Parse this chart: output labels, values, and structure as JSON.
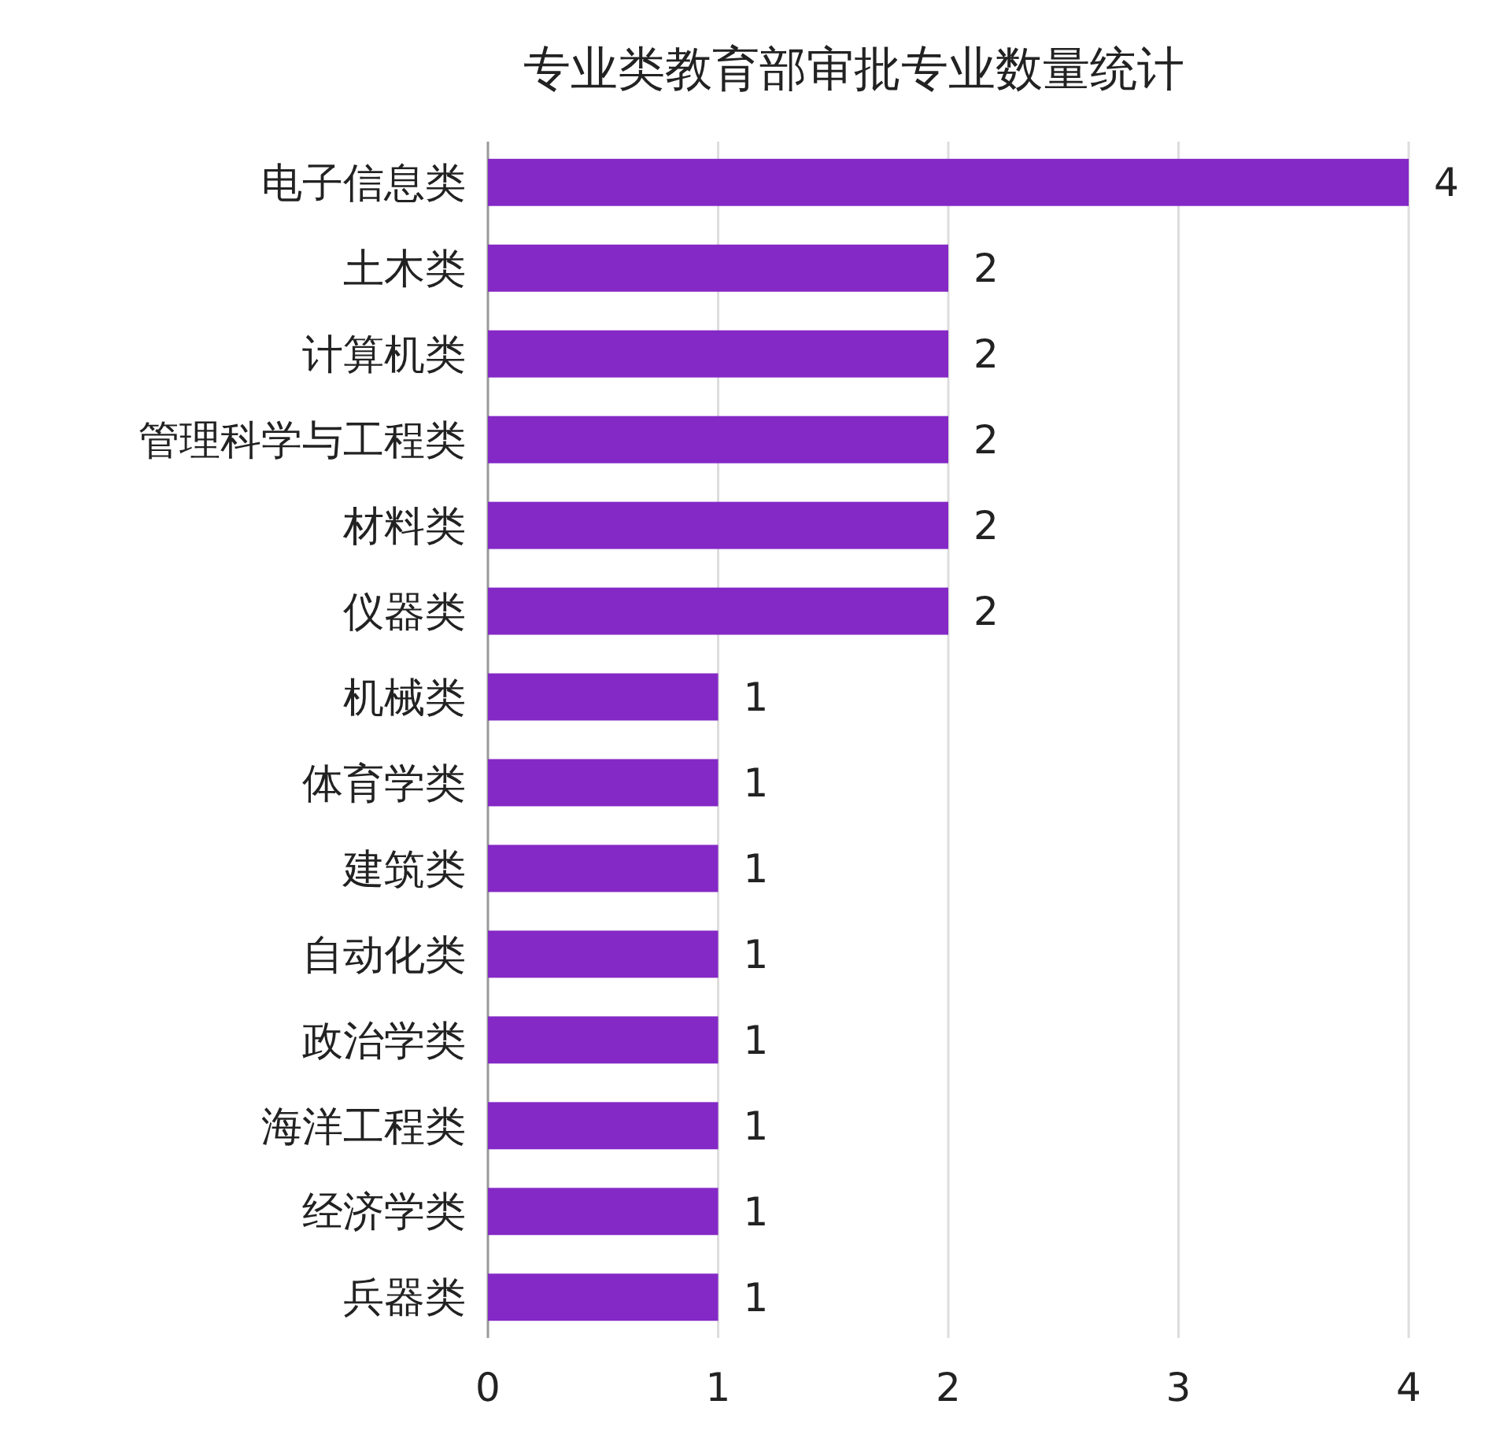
{
  "chart_data": {
    "type": "bar",
    "orientation": "horizontal",
    "title": "专业类教育部审批专业数量统计",
    "categories": [
      "电子信息类",
      "土木类",
      "计算机类",
      "管理科学与工程类",
      "材料类",
      "仪器类",
      "机械类",
      "体育学类",
      "建筑类",
      "自动化类",
      "政治学类",
      "海洋工程类",
      "经济学类",
      "兵器类"
    ],
    "values": [
      4,
      2,
      2,
      2,
      2,
      2,
      1,
      1,
      1,
      1,
      1,
      1,
      1,
      1
    ],
    "color": "#8428c6",
    "xlim": [
      0,
      4
    ],
    "xticks": [
      0,
      1,
      2,
      3,
      4
    ],
    "grid": "x",
    "data_labels": true
  }
}
